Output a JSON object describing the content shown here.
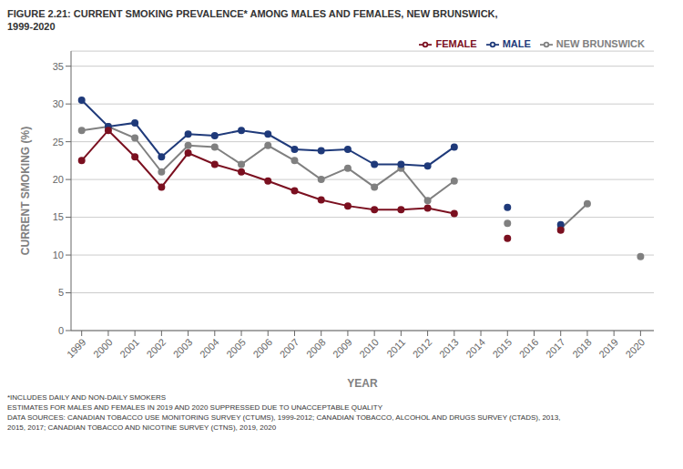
{
  "chart_data": {
    "type": "line",
    "title": "FIGURE 2.21: CURRENT SMOKING PREVALENCE* AMONG MALES AND FEMALES, NEW BRUNSWICK,",
    "subtitle": "1999-2020",
    "x_label": "YEAR",
    "y_label": "CURRENT SMOKING (%)",
    "x": [
      1999,
      2000,
      2001,
      2002,
      2003,
      2004,
      2005,
      2006,
      2007,
      2008,
      2009,
      2010,
      2011,
      2012,
      2013,
      2014,
      2015,
      2016,
      2017,
      2018,
      2019,
      2020
    ],
    "series": [
      {
        "name": "NEW BRUNSWICK",
        "color": "#808080",
        "marker": "circle",
        "values": [
          26.5,
          27.0,
          25.5,
          21.0,
          24.5,
          24.3,
          22.0,
          24.5,
          22.5,
          20.0,
          21.5,
          19.0,
          21.5,
          17.2,
          19.8,
          null,
          14.2,
          null,
          13.5,
          16.8,
          null,
          9.8
        ]
      },
      {
        "name": "MALE",
        "color": "#1F3A7A",
        "marker": "circle",
        "values": [
          30.5,
          27.0,
          27.5,
          23.0,
          26.0,
          25.8,
          26.5,
          26.0,
          24.0,
          23.8,
          24.0,
          22.0,
          22.0,
          21.8,
          24.3,
          null,
          16.3,
          null,
          14.0,
          null,
          null,
          null
        ]
      },
      {
        "name": "FEMALE",
        "color": "#7B1020",
        "marker": "circle",
        "values": [
          22.5,
          26.5,
          23.0,
          19.0,
          23.5,
          22.0,
          21.0,
          19.8,
          18.5,
          17.3,
          16.5,
          16.0,
          16.0,
          16.2,
          15.5,
          null,
          12.2,
          null,
          13.3,
          null,
          null,
          null
        ]
      }
    ],
    "xlim": [
      1998.6,
      2020.5
    ],
    "xticks": [
      1999,
      2000,
      2001,
      2002,
      2003,
      2004,
      2005,
      2006,
      2007,
      2008,
      2009,
      2010,
      2011,
      2012,
      2013,
      2014,
      2015,
      2016,
      2017,
      2018,
      2019,
      2020
    ],
    "ylim": [
      0,
      37
    ],
    "yticks": [
      0,
      5,
      10,
      15,
      20,
      25,
      30,
      35
    ],
    "grid": true,
    "legend": "upper right",
    "annotations": [
      "*INCLUDES DAILY AND NON-DAILY SMOKERS",
      "ESTIMATES FOR MALES AND FEMALES IN 2019 AND 2020 SUPPRESSED DUE TO UNACCEPTABLE QUALITY",
      "DATA SOURCES: CANADIAN TOBACCO USE MONITORING SURVEY (CTUMS), 1999-2012; CANADIAN TOBACCO, ALCOHOL AND DRUGS SURVEY (CTADS), 2013,",
      "2015, 2017; CANADIAN TOBACCO AND NICOTINE SURVEY (CTNS), 2019, 2020"
    ]
  }
}
